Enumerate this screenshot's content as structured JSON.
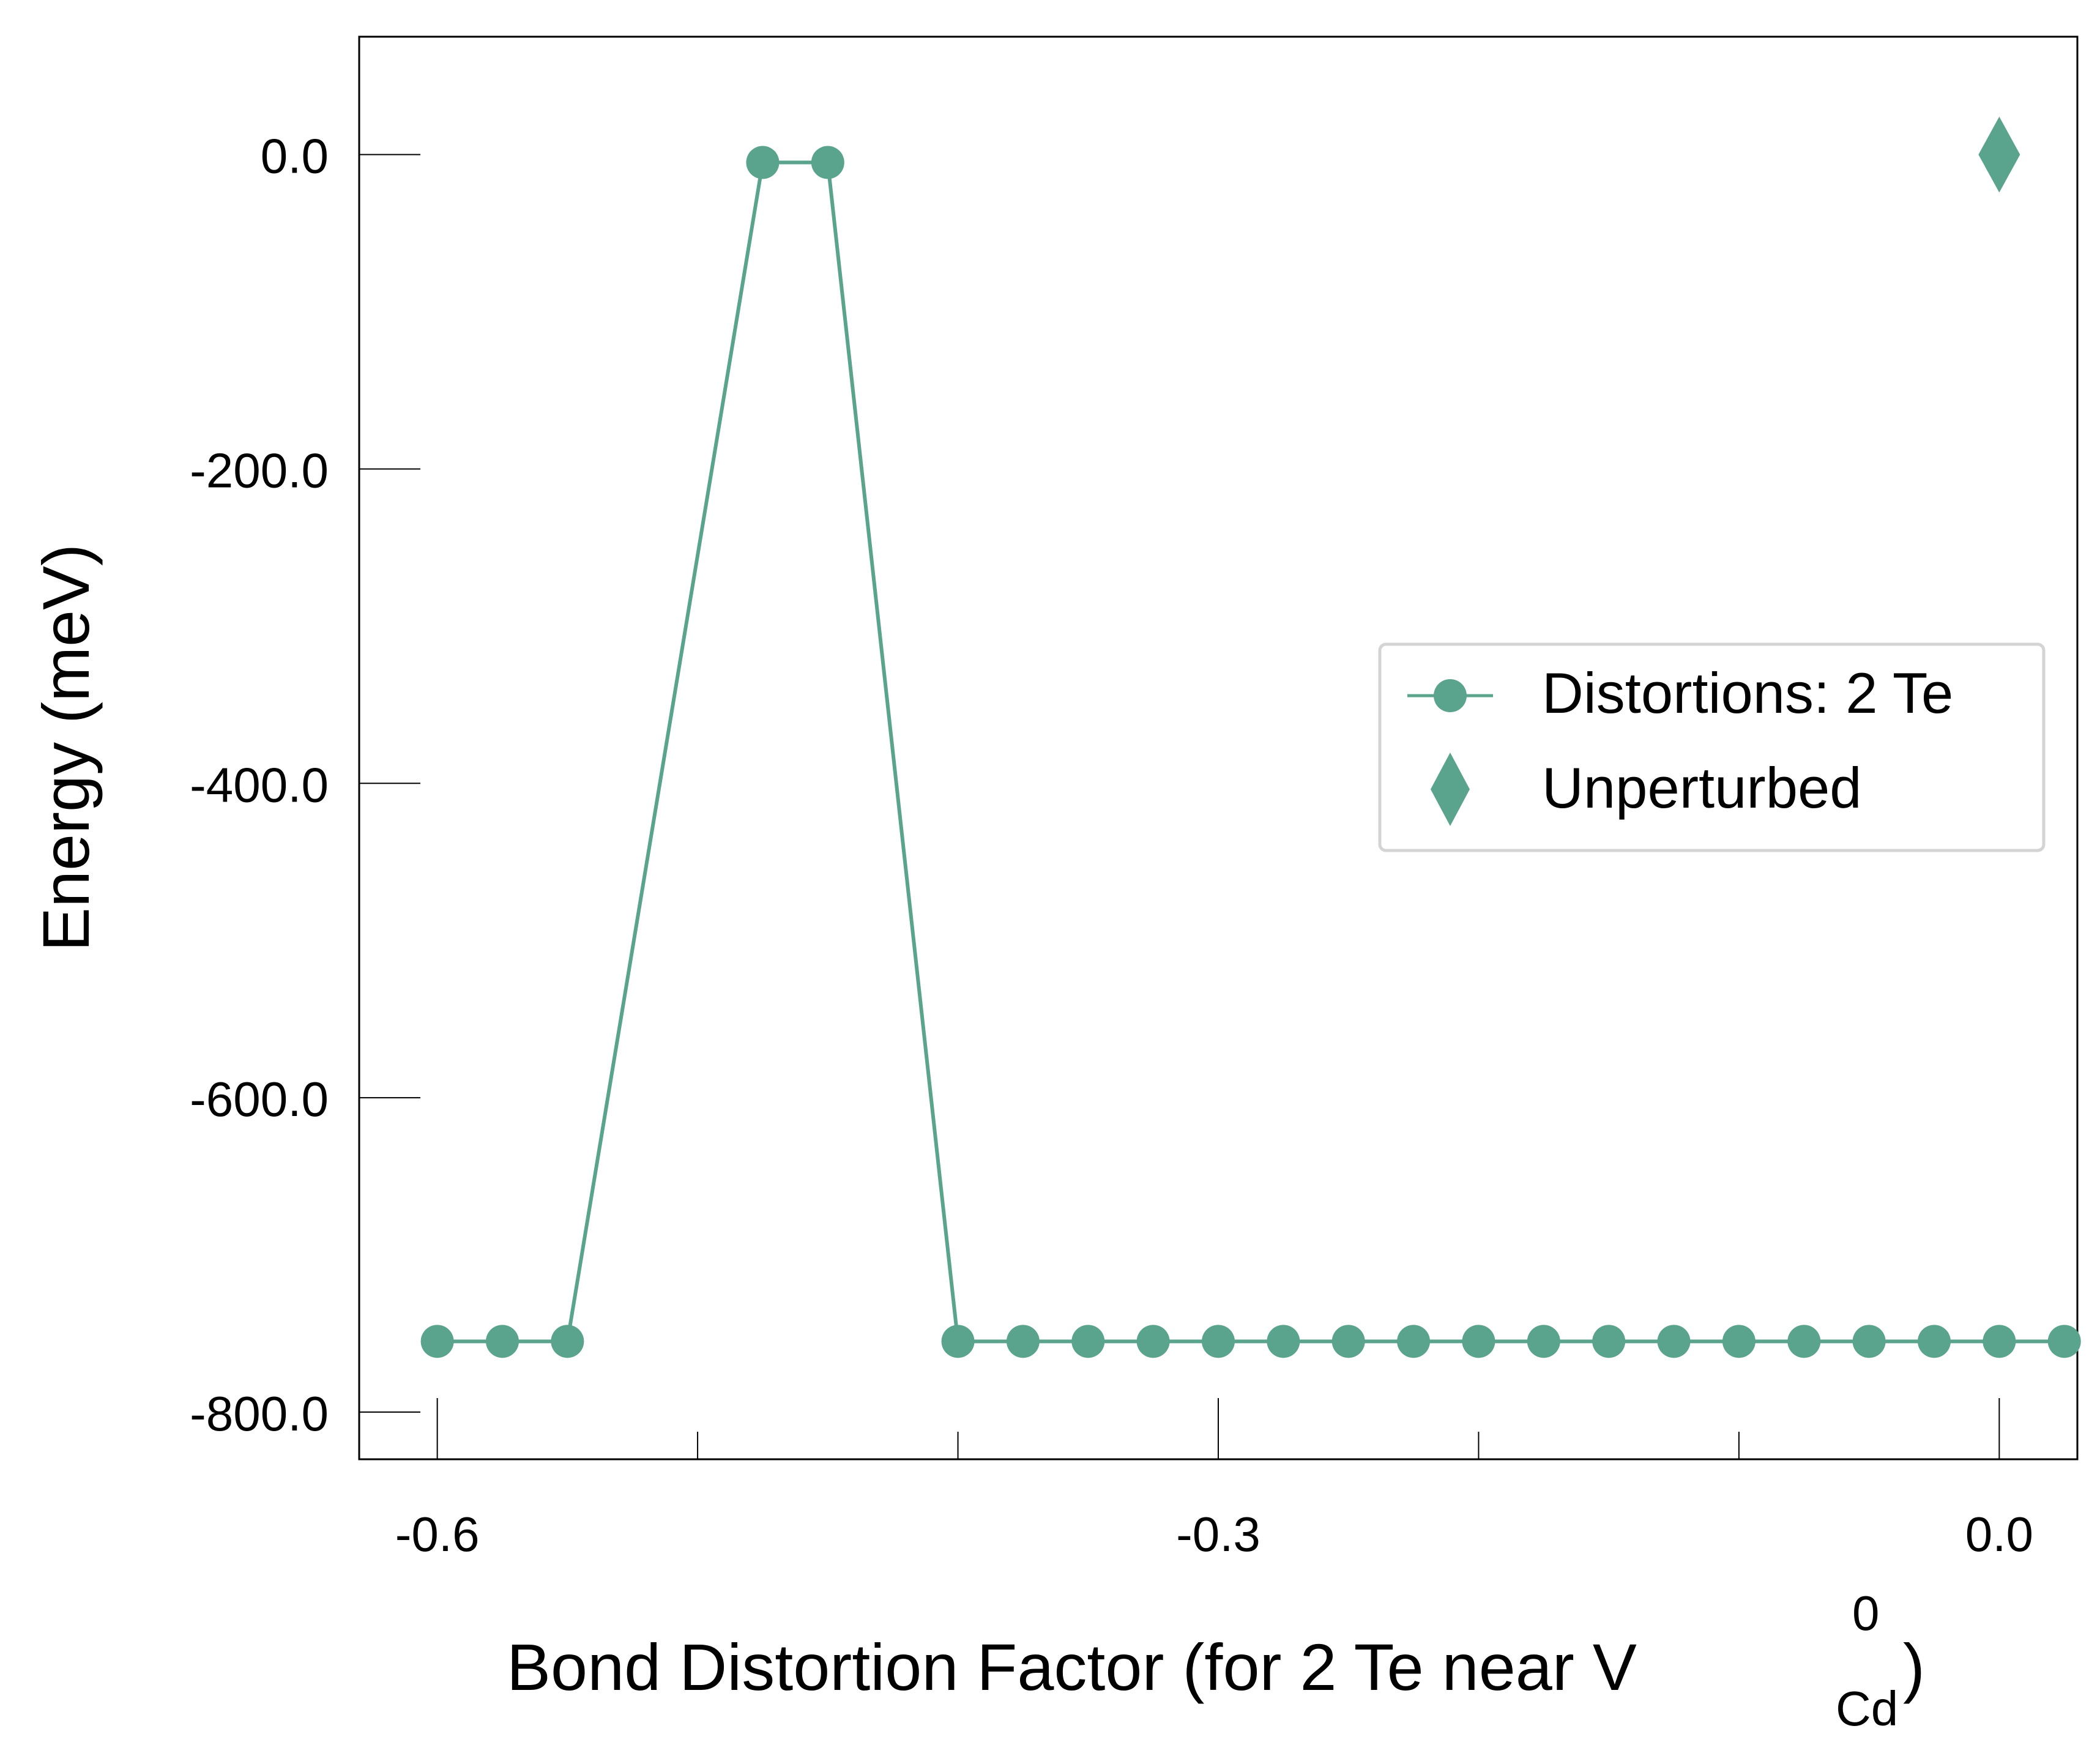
{
  "chart_data": {
    "type": "line",
    "xlabel": {
      "main": "Bond Distortion Factor (for 2 Te near V",
      "superscript": "0",
      "subscript": "Cd",
      "close": ")"
    },
    "ylabel": "Energy (meV)",
    "xlim": [
      -0.63,
      0.03
    ],
    "ylim": [
      -830,
      75
    ],
    "xticks": [
      {
        "value": -0.6,
        "label": "-0.6"
      },
      {
        "value": -0.3,
        "label": "-0.3"
      },
      {
        "value": 0.0,
        "label": "0.0"
      }
    ],
    "xminor": [
      -0.5,
      -0.4,
      -0.2,
      -0.1
    ],
    "yticks": [
      {
        "value": 0,
        "label": "0.0"
      },
      {
        "value": -200,
        "label": "-200.0"
      },
      {
        "value": -400,
        "label": "-400.0"
      },
      {
        "value": -600,
        "label": "-600.0"
      },
      {
        "value": -800,
        "label": "-800.0"
      }
    ],
    "grid": false,
    "legend_position": "center-right",
    "color": "#5aa38c",
    "series": [
      {
        "name": "Distortions: 2 Te",
        "marker": "circle",
        "x": [
          -0.6,
          -0.575,
          -0.55,
          -0.475,
          -0.45,
          -0.4,
          -0.375,
          -0.35,
          -0.325,
          -0.3,
          -0.275,
          -0.25,
          -0.225,
          -0.2,
          -0.175,
          -0.15,
          -0.125,
          -0.1,
          -0.075,
          -0.05,
          -0.025,
          0.0,
          0.025
        ],
        "y": [
          -755,
          -755,
          -755,
          -5,
          -5,
          -755,
          -755,
          -755,
          -755,
          -755,
          -755,
          -755,
          -755,
          -755,
          -755,
          -755,
          -755,
          -755,
          -755,
          -755,
          -755,
          -755,
          -755
        ]
      },
      {
        "name": "Unperturbed",
        "marker": "diamond",
        "x": [
          0.0
        ],
        "y": [
          0
        ]
      }
    ]
  }
}
